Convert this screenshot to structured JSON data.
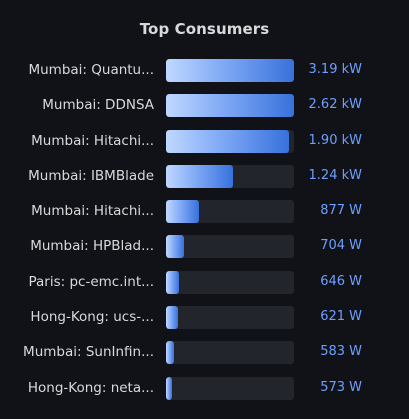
{
  "panel": {
    "title": "Top Consumers",
    "accent_color": "#3871dc",
    "value_color": "#6e9fff"
  },
  "rows": [
    {
      "label": "Mumbai: Quantu...",
      "value": "3.19 kW",
      "watts": 3190,
      "fraction": 1.0
    },
    {
      "label": "Mumbai: DDNSA",
      "value": "2.62 kW",
      "watts": 2620,
      "fraction": 1.0
    },
    {
      "label": "Mumbai: Hitachi...",
      "value": "1.90 kW",
      "watts": 1900,
      "fraction": 0.96
    },
    {
      "label": "Mumbai: IBMBlade",
      "value": "1.24 kW",
      "watts": 1240,
      "fraction": 0.52
    },
    {
      "label": "Mumbai: Hitachi...",
      "value": "877 W",
      "watts": 877,
      "fraction": 0.26
    },
    {
      "label": "Mumbai: HPBlad...",
      "value": "704 W",
      "watts": 704,
      "fraction": 0.14
    },
    {
      "label": "Paris: pc-emc.int...",
      "value": "646 W",
      "watts": 646,
      "fraction": 0.1
    },
    {
      "label": "Hong-Kong: ucs-...",
      "value": "621 W",
      "watts": 621,
      "fraction": 0.09
    },
    {
      "label": "Mumbai: SunInfin...",
      "value": "583 W",
      "watts": 583,
      "fraction": 0.06
    },
    {
      "label": "Hong-Kong: neta...",
      "value": "573 W",
      "watts": 573,
      "fraction": 0.05
    }
  ]
}
